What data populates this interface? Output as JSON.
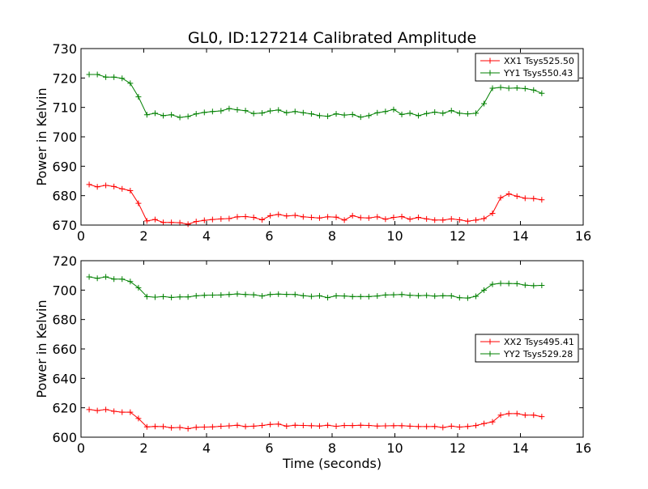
{
  "title": "GL0, ID:127214 Calibrated Amplitude",
  "chart_data": [
    {
      "type": "line",
      "title": "GL0, ID:127214 Calibrated Amplitude",
      "xlabel": "",
      "ylabel": "Power in Kelvin",
      "xlim": [
        0,
        16
      ],
      "ylim": [
        670,
        730
      ],
      "xticks": [
        "0",
        "2",
        "4",
        "6",
        "8",
        "10",
        "12",
        "14",
        "16"
      ],
      "yticks": [
        "670",
        "680",
        "690",
        "700",
        "710",
        "720",
        "730"
      ],
      "grid": false,
      "legend_position": "top-right",
      "x": [
        0.26,
        0.52,
        0.79,
        1.05,
        1.31,
        1.57,
        1.83,
        2.1,
        2.36,
        2.62,
        2.88,
        3.15,
        3.41,
        3.67,
        3.93,
        4.19,
        4.46,
        4.72,
        4.98,
        5.24,
        5.5,
        5.77,
        6.03,
        6.29,
        6.55,
        6.82,
        7.08,
        7.34,
        7.6,
        7.86,
        8.13,
        8.39,
        8.65,
        8.91,
        9.17,
        9.44,
        9.7,
        9.96,
        10.22,
        10.48,
        10.75,
        11.01,
        11.27,
        11.53,
        11.8,
        12.06,
        12.32,
        12.58,
        12.84,
        13.11,
        13.37,
        13.63,
        13.89,
        14.15,
        14.42,
        14.68
      ],
      "series": [
        {
          "name": "XX1 Tsys525.50",
          "color": "#ff0000",
          "values": [
            683.8,
            683.0,
            683.5,
            683.1,
            682.3,
            681.7,
            677.4,
            671.4,
            671.9,
            670.9,
            670.9,
            670.8,
            670.3,
            671.2,
            671.6,
            671.9,
            672.1,
            672.2,
            672.8,
            672.9,
            672.6,
            671.8,
            673.2,
            673.6,
            673.1,
            673.3,
            672.8,
            672.6,
            672.4,
            672.8,
            672.7,
            671.7,
            673.2,
            672.5,
            672.4,
            672.8,
            672.0,
            672.6,
            672.9,
            672.0,
            672.6,
            672.1,
            671.7,
            671.7,
            672.1,
            671.8,
            671.3,
            671.7,
            672.2,
            674.0,
            679.3,
            680.6,
            679.8,
            679.1,
            679.0,
            678.6
          ]
        },
        {
          "name": "YY1 Tsys550.43",
          "color": "#008000",
          "values": [
            721.2,
            721.2,
            720.3,
            720.3,
            719.9,
            718.2,
            713.6,
            707.5,
            708.0,
            707.2,
            707.5,
            706.6,
            706.9,
            707.8,
            708.3,
            708.6,
            708.8,
            709.6,
            709.2,
            708.9,
            707.9,
            708.1,
            708.8,
            709.1,
            708.2,
            708.6,
            708.2,
            707.8,
            707.2,
            707.0,
            707.8,
            707.4,
            707.6,
            706.7,
            707.2,
            708.2,
            708.6,
            709.3,
            707.6,
            708.0,
            707.2,
            707.9,
            708.4,
            708.0,
            708.9,
            708.0,
            707.8,
            708.0,
            711.3,
            716.5,
            716.8,
            716.5,
            716.6,
            716.4,
            715.9,
            714.8
          ]
        }
      ]
    },
    {
      "type": "line",
      "title": "",
      "xlabel": "Time (seconds)",
      "ylabel": "Power in Kelvin",
      "xlim": [
        0,
        16
      ],
      "ylim": [
        600,
        720
      ],
      "xticks": [
        "0",
        "2",
        "4",
        "6",
        "8",
        "10",
        "12",
        "14",
        "16"
      ],
      "yticks": [
        "600",
        "620",
        "640",
        "660",
        "680",
        "700",
        "720"
      ],
      "grid": false,
      "legend_position": "center-right",
      "x": [
        0.26,
        0.52,
        0.79,
        1.05,
        1.31,
        1.57,
        1.83,
        2.1,
        2.36,
        2.62,
        2.88,
        3.15,
        3.41,
        3.67,
        3.93,
        4.19,
        4.46,
        4.72,
        4.98,
        5.24,
        5.5,
        5.77,
        6.03,
        6.29,
        6.55,
        6.82,
        7.08,
        7.34,
        7.6,
        7.86,
        8.13,
        8.39,
        8.65,
        8.91,
        9.17,
        9.44,
        9.7,
        9.96,
        10.22,
        10.48,
        10.75,
        11.01,
        11.27,
        11.53,
        11.8,
        12.06,
        12.32,
        12.58,
        12.84,
        13.11,
        13.37,
        13.63,
        13.89,
        14.15,
        14.42,
        14.68
      ],
      "series": [
        {
          "name": "XX2 Tsys495.41",
          "color": "#ff0000",
          "values": [
            618.8,
            618.1,
            618.8,
            617.6,
            617.0,
            617.0,
            612.7,
            607.0,
            607.3,
            607.2,
            606.4,
            606.6,
            605.8,
            606.7,
            606.9,
            607.0,
            607.4,
            607.7,
            608.1,
            607.2,
            607.5,
            608.0,
            608.7,
            608.9,
            607.5,
            608.1,
            608.0,
            607.8,
            607.6,
            608.1,
            607.4,
            608.0,
            607.9,
            608.1,
            608.0,
            607.6,
            607.7,
            607.8,
            607.8,
            607.5,
            607.2,
            607.2,
            607.3,
            606.6,
            607.5,
            606.9,
            607.3,
            607.9,
            609.3,
            610.4,
            615.0,
            616.0,
            616.0,
            615.0,
            615.0,
            614.0
          ]
        },
        {
          "name": "YY2 Tsys529.28",
          "color": "#008000",
          "values": [
            709.0,
            708.0,
            709.0,
            707.5,
            707.5,
            705.8,
            701.6,
            695.6,
            695.2,
            695.6,
            695.0,
            695.4,
            695.4,
            696.1,
            696.5,
            696.6,
            696.7,
            697.0,
            697.4,
            697.0,
            696.8,
            696.0,
            697.0,
            697.3,
            697.1,
            697.0,
            696.2,
            695.7,
            696.1,
            694.9,
            696.1,
            696.0,
            695.6,
            695.6,
            695.6,
            696.0,
            696.7,
            696.8,
            697.0,
            696.5,
            696.2,
            696.4,
            695.9,
            696.2,
            696.1,
            694.8,
            694.6,
            695.8,
            700.0,
            704.0,
            704.6,
            704.5,
            704.4,
            703.4,
            703.0,
            703.2
          ]
        }
      ]
    }
  ]
}
